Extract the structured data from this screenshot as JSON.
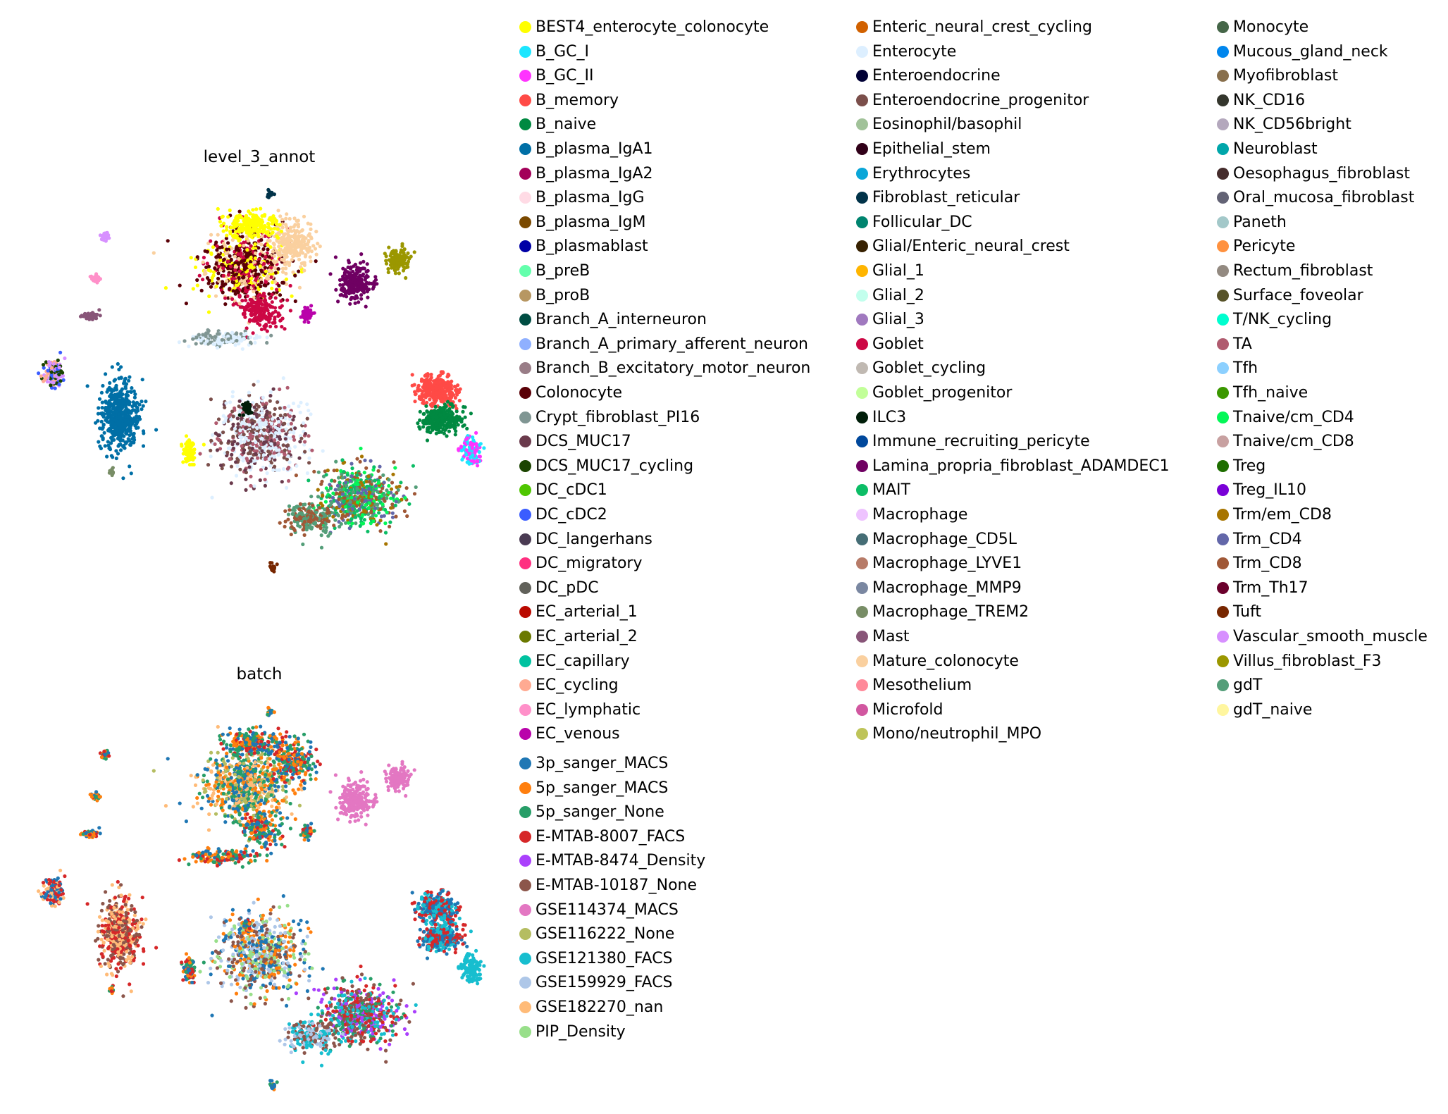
{
  "chart_data": [
    {
      "type": "scatter",
      "title": "level_3_annot",
      "legend_position": "right",
      "categories": [
        {
          "name": "BEST4_enterocyte_colonocyte",
          "color": "#ffff00"
        },
        {
          "name": "B_GC_I",
          "color": "#1ce6ff"
        },
        {
          "name": "B_GC_II",
          "color": "#ff34ff"
        },
        {
          "name": "B_memory",
          "color": "#ff4a46"
        },
        {
          "name": "B_naive",
          "color": "#008941"
        },
        {
          "name": "B_plasma_IgA1",
          "color": "#006fa6"
        },
        {
          "name": "B_plasma_IgA2",
          "color": "#a30059"
        },
        {
          "name": "B_plasma_IgG",
          "color": "#ffdbe5"
        },
        {
          "name": "B_plasma_IgM",
          "color": "#7a4900"
        },
        {
          "name": "B_plasmablast",
          "color": "#0000a6"
        },
        {
          "name": "B_preB",
          "color": "#63ffac"
        },
        {
          "name": "B_proB",
          "color": "#b79762"
        },
        {
          "name": "Branch_A_interneuron",
          "color": "#004d43"
        },
        {
          "name": "Branch_A_primary_afferent_neuron",
          "color": "#8fb0ff"
        },
        {
          "name": "Branch_B_excitatory_motor_neuron",
          "color": "#997d87"
        },
        {
          "name": "Colonocyte",
          "color": "#5a0007"
        },
        {
          "name": "Crypt_fibroblast_PI16",
          "color": "#809693"
        },
        {
          "name": "DCS_MUC17",
          "color": "#6a3a4c"
        },
        {
          "name": "DCS_MUC17_cycling",
          "color": "#1b4400"
        },
        {
          "name": "DC_cDC1",
          "color": "#4fc601"
        },
        {
          "name": "DC_cDC2",
          "color": "#3b5dff"
        },
        {
          "name": "DC_langerhans",
          "color": "#4a3b53"
        },
        {
          "name": "DC_migratory",
          "color": "#ff2f80"
        },
        {
          "name": "DC_pDC",
          "color": "#61615a"
        },
        {
          "name": "EC_arterial_1",
          "color": "#ba0900"
        },
        {
          "name": "EC_arterial_2",
          "color": "#6b7900"
        },
        {
          "name": "EC_capillary",
          "color": "#00c2a0"
        },
        {
          "name": "EC_cycling",
          "color": "#ffaa92"
        },
        {
          "name": "EC_lymphatic",
          "color": "#ff90c9"
        },
        {
          "name": "EC_venous",
          "color": "#b903aa"
        },
        {
          "name": "Enteric_neural_crest_cycling",
          "color": "#d16100"
        },
        {
          "name": "Enterocyte",
          "color": "#ddefff"
        },
        {
          "name": "Enteroendocrine",
          "color": "#000035"
        },
        {
          "name": "Enteroendocrine_progenitor",
          "color": "#7b4f4b"
        },
        {
          "name": "Eosinophil/basophil",
          "color": "#a1c299"
        },
        {
          "name": "Epithelial_stem",
          "color": "#300018"
        },
        {
          "name": "Erythrocytes",
          "color": "#0aa6d8"
        },
        {
          "name": "Fibroblast_reticular",
          "color": "#013349"
        },
        {
          "name": "Follicular_DC",
          "color": "#00846f"
        },
        {
          "name": "Glial/Enteric_neural_crest",
          "color": "#372101"
        },
        {
          "name": "Glial_1",
          "color": "#ffb500"
        },
        {
          "name": "Glial_2",
          "color": "#c2ffed"
        },
        {
          "name": "Glial_3",
          "color": "#a079bf"
        },
        {
          "name": "Goblet",
          "color": "#cc0744"
        },
        {
          "name": "Goblet_cycling",
          "color": "#c0b9b2"
        },
        {
          "name": "Goblet_progenitor",
          "color": "#c2ff99"
        },
        {
          "name": "ILC3",
          "color": "#001e09"
        },
        {
          "name": "Immune_recruiting_pericyte",
          "color": "#00489c"
        },
        {
          "name": "Lamina_propria_fibroblast_ADAMDEC1",
          "color": "#6f0062"
        },
        {
          "name": "MAIT",
          "color": "#0cbd66"
        },
        {
          "name": "Macrophage",
          "color": "#eec3ff"
        },
        {
          "name": "Macrophage_CD5L",
          "color": "#456d75"
        },
        {
          "name": "Macrophage_LYVE1",
          "color": "#b77b68"
        },
        {
          "name": "Macrophage_MMP9",
          "color": "#7a87a1"
        },
        {
          "name": "Macrophage_TREM2",
          "color": "#788d66"
        },
        {
          "name": "Mast",
          "color": "#885578"
        },
        {
          "name": "Mature_colonocyte",
          "color": "#fad09f"
        },
        {
          "name": "Mesothelium",
          "color": "#ff8a9a"
        },
        {
          "name": "Microfold",
          "color": "#d157a0"
        },
        {
          "name": "Mono/neutrophil_MPO",
          "color": "#bec459"
        },
        {
          "name": "Monocyte",
          "color": "#456648"
        },
        {
          "name": "Mucous_gland_neck",
          "color": "#0086ed"
        },
        {
          "name": "Myofibroblast",
          "color": "#886f4c"
        },
        {
          "name": "NK_CD16",
          "color": "#34362d"
        },
        {
          "name": "NK_CD56bright",
          "color": "#b4a8bd"
        },
        {
          "name": "Neuroblast",
          "color": "#00a6aa"
        },
        {
          "name": "Oesophagus_fibroblast",
          "color": "#452c2c"
        },
        {
          "name": "Oral_mucosa_fibroblast",
          "color": "#636375"
        },
        {
          "name": "Paneth",
          "color": "#a3c8c9"
        },
        {
          "name": "Pericyte",
          "color": "#ff913f"
        },
        {
          "name": "Rectum_fibroblast",
          "color": "#938a81"
        },
        {
          "name": "Surface_foveolar",
          "color": "#575329"
        },
        {
          "name": "T/NK_cycling",
          "color": "#00fecf"
        },
        {
          "name": "TA",
          "color": "#b05b6f"
        },
        {
          "name": "Tfh",
          "color": "#8cd0ff"
        },
        {
          "name": "Tfh_naive",
          "color": "#3b9700"
        },
        {
          "name": "Tnaive/cm_CD4",
          "color": "#04f757"
        },
        {
          "name": "Tnaive/cm_CD8",
          "color": "#c8a1a1"
        },
        {
          "name": "Treg",
          "color": "#1e6e00"
        },
        {
          "name": "Treg_IL10",
          "color": "#7900d7"
        },
        {
          "name": "Trm/em_CD8",
          "color": "#a77500"
        },
        {
          "name": "Trm_CD4",
          "color": "#6367a9"
        },
        {
          "name": "Trm_CD8",
          "color": "#a05837"
        },
        {
          "name": "Trm_Th17",
          "color": "#6b002c"
        },
        {
          "name": "Tuft",
          "color": "#772600"
        },
        {
          "name": "Vascular_smooth_muscle",
          "color": "#d790ff"
        },
        {
          "name": "Villus_fibroblast_F3",
          "color": "#9b9700"
        },
        {
          "name": "gdT",
          "color": "#549e79"
        },
        {
          "name": "gdT_naive",
          "color": "#fff69f"
        }
      ]
    },
    {
      "type": "scatter",
      "title": "batch",
      "legend_position": "right",
      "categories": [
        {
          "name": "3p_sanger_MACS",
          "color": "#1f77b4"
        },
        {
          "name": "5p_sanger_MACS",
          "color": "#ff7f0e"
        },
        {
          "name": "5p_sanger_None",
          "color": "#279e68"
        },
        {
          "name": "E-MTAB-8007_FACS",
          "color": "#d62728"
        },
        {
          "name": "E-MTAB-8474_Density",
          "color": "#aa40fc"
        },
        {
          "name": "E-MTAB-10187_None",
          "color": "#8c564b"
        },
        {
          "name": "GSE114374_MACS",
          "color": "#e377c2"
        },
        {
          "name": "GSE116222_None",
          "color": "#b5bd61"
        },
        {
          "name": "GSE121380_FACS",
          "color": "#17becf"
        },
        {
          "name": "GSE159929_FACS",
          "color": "#aec7e8"
        },
        {
          "name": "GSE182270_nan",
          "color": "#ffbb78"
        },
        {
          "name": "PIP_Density",
          "color": "#98df8a"
        }
      ]
    }
  ]
}
